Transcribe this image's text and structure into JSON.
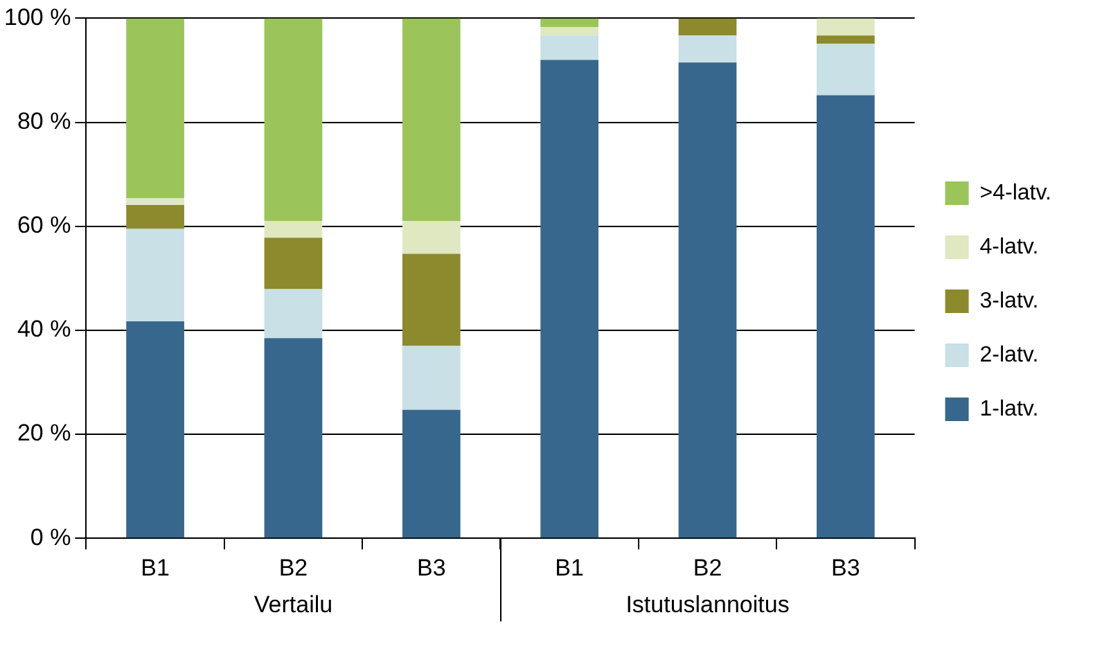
{
  "chart_data": {
    "type": "bar",
    "stacked": true,
    "categories": [
      "B1",
      "B2",
      "B3",
      "B1",
      "B2",
      "B3"
    ],
    "series": [
      {
        "name": "1-latv.",
        "color": "#37678c",
        "values": [
          41.7,
          38.5,
          24.7,
          92.0,
          91.5,
          85.2
        ]
      },
      {
        "name": "2-latv.",
        "color": "#c8e0e6",
        "values": [
          17.8,
          9.4,
          12.3,
          4.7,
          5.2,
          9.9
        ]
      },
      {
        "name": "3-latv.",
        "color": "#8c8a2c",
        "values": [
          4.6,
          9.9,
          17.7,
          0,
          3.3,
          1.6
        ]
      },
      {
        "name": "4-latv.",
        "color": "#dfe8c0",
        "values": [
          1.3,
          3.2,
          6.3,
          1.6,
          0,
          3.3
        ]
      },
      {
        "name": ">4-latv.",
        "color": "#9bc45a",
        "values": [
          34.6,
          39.0,
          39.0,
          1.7,
          0,
          0
        ]
      }
    ],
    "ylim": [
      0,
      100
    ],
    "yticks": [
      {
        "value": 0,
        "label": "0 %"
      },
      {
        "value": 20,
        "label": "20 %"
      },
      {
        "value": 40,
        "label": "40 %"
      },
      {
        "value": 60,
        "label": "60 %"
      },
      {
        "value": 80,
        "label": "80 %"
      },
      {
        "value": 100,
        "label": "100 %"
      }
    ],
    "grid": "y",
    "legend": "right",
    "annotations": [
      "Vertailu",
      "Istutuslannoitus"
    ]
  }
}
